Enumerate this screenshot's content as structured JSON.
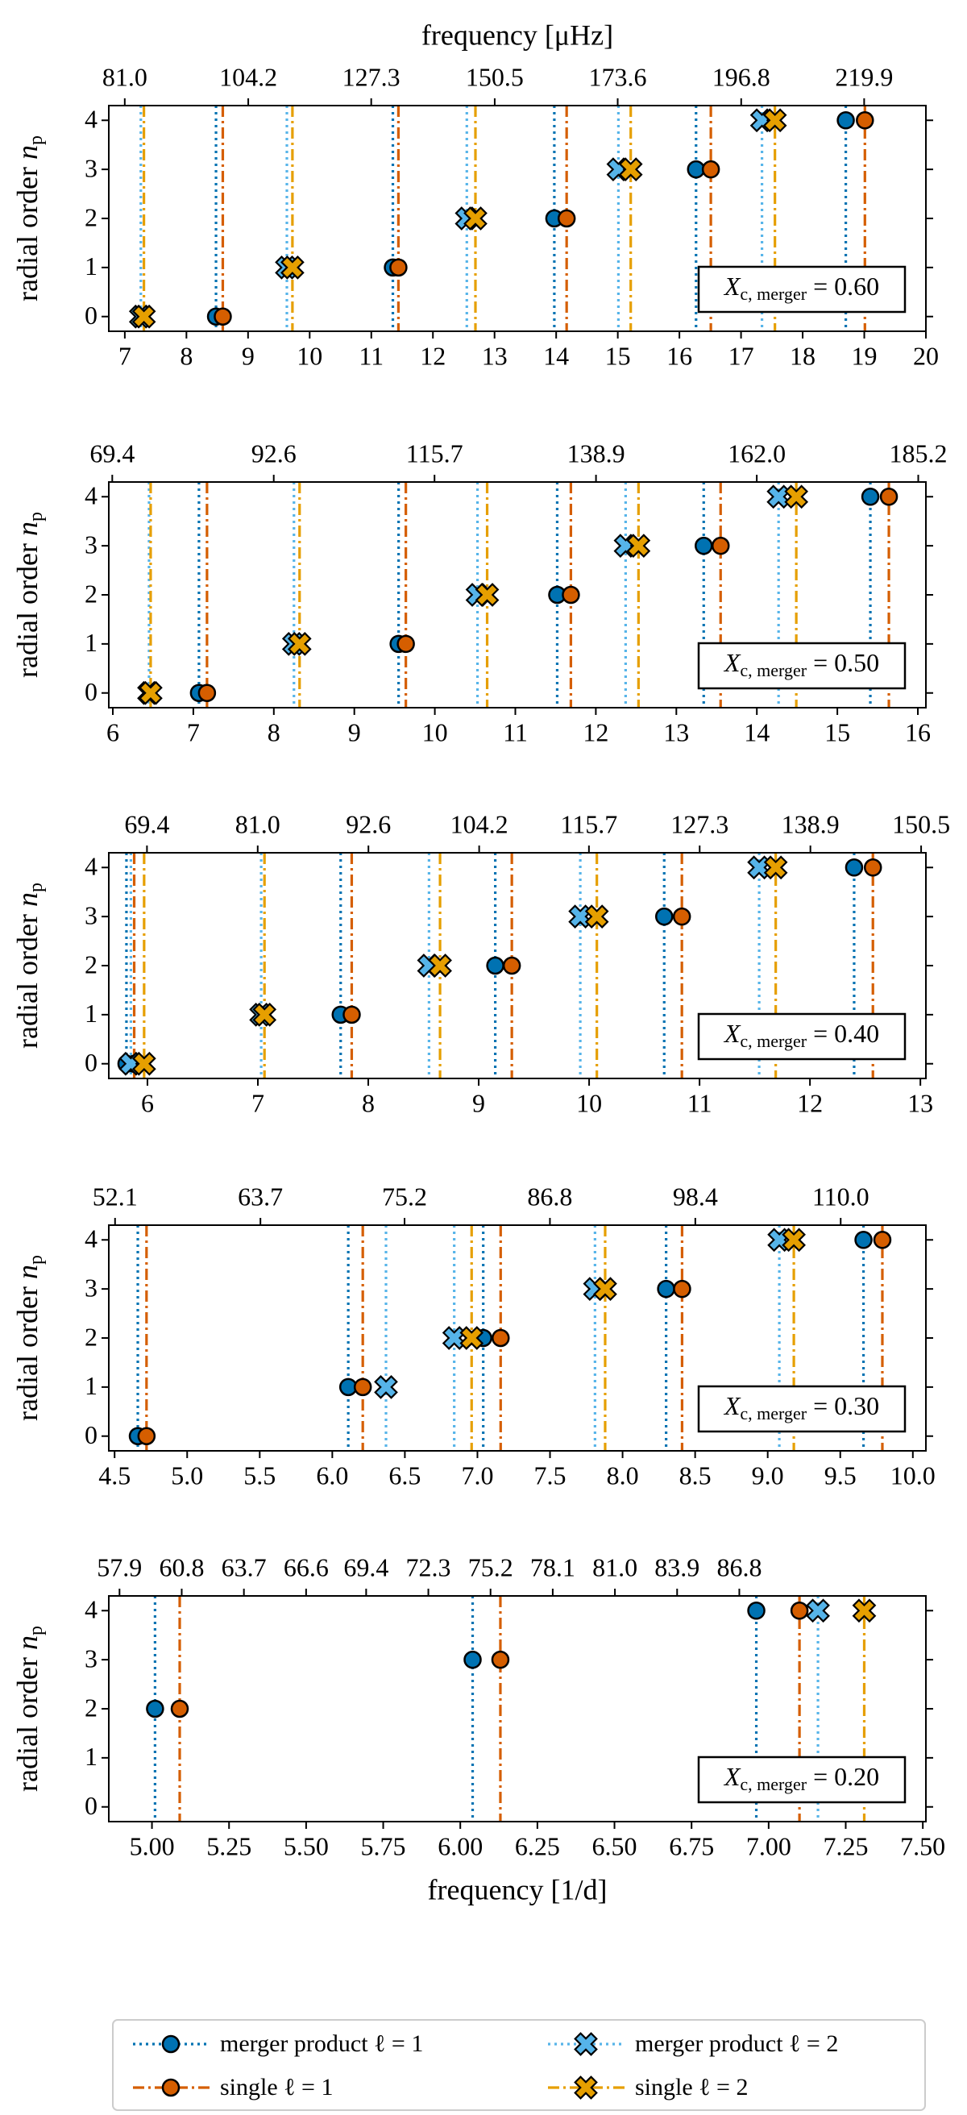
{
  "chart_data": [
    {
      "type": "scatter",
      "x2_label": "frequency [μHz]",
      "y_label": {
        "text": "radial order",
        "symbol": "n",
        "subscript": "p"
      },
      "xlim": [
        6.74,
        20.0
      ],
      "xticks": [
        7,
        8,
        9,
        10,
        11,
        12,
        13,
        14,
        15,
        16,
        17,
        18,
        19,
        20
      ],
      "x2lim": [
        78.0,
        231.5
      ],
      "x2ticks": [
        {
          "value": 81.0,
          "label": "81.0"
        },
        104.2,
        127.3,
        150.5,
        173.6,
        196.8,
        219.9
      ],
      "ylim": [
        -0.3,
        4.3
      ],
      "yticks": [
        0,
        1,
        2,
        3,
        4
      ],
      "annotation": {
        "symbol": "X",
        "subscript": "c, merger",
        "text": "= 0.60"
      },
      "series": [
        {
          "x": [
            8.48,
            11.35,
            13.97,
            16.27,
            18.7
          ],
          "values": [
            0,
            1,
            2,
            3,
            4
          ]
        },
        {
          "x": [
            8.59,
            11.44,
            14.17,
            16.51,
            19.01
          ],
          "values": [
            0,
            1,
            2,
            3,
            4
          ]
        },
        {
          "x": [
            7.26,
            9.63,
            12.55,
            15.01,
            17.34
          ],
          "values": [
            0,
            1,
            2,
            3,
            4
          ]
        },
        {
          "x": [
            7.31,
            9.72,
            12.69,
            15.21,
            17.55
          ],
          "values": [
            0,
            1,
            2,
            3,
            4
          ]
        }
      ]
    },
    {
      "type": "scatter",
      "y_label": {
        "text": "radial order",
        "symbol": "n",
        "subscript": "p"
      },
      "xlim": [
        5.95,
        16.1
      ],
      "xticks": [
        6,
        7,
        8,
        9,
        10,
        11,
        12,
        13,
        14,
        15,
        16
      ],
      "x2lim": [
        68.9,
        186.3
      ],
      "x2ticks": [
        69.4,
        92.6,
        115.7,
        138.9,
        {
          "value": 162.0,
          "label": "162.0"
        },
        185.2
      ],
      "ylim": [
        -0.3,
        4.3
      ],
      "yticks": [
        0,
        1,
        2,
        3,
        4
      ],
      "annotation": {
        "symbol": "X",
        "subscript": "c, merger",
        "text": "= 0.50"
      },
      "series": [
        {
          "x": [
            7.07,
            9.55,
            11.52,
            13.34,
            15.41
          ],
          "values": [
            0,
            1,
            2,
            3,
            4
          ]
        },
        {
          "x": [
            7.17,
            9.64,
            11.69,
            13.55,
            15.64
          ],
          "values": [
            0,
            1,
            2,
            3,
            4
          ]
        },
        {
          "x": [
            6.45,
            8.25,
            10.53,
            12.37,
            14.27
          ],
          "values": [
            0,
            1,
            2,
            3,
            4
          ]
        },
        {
          "x": [
            6.47,
            8.32,
            10.65,
            12.53,
            14.49
          ],
          "values": [
            0,
            1,
            2,
            3,
            4
          ]
        }
      ]
    },
    {
      "type": "scatter",
      "y_label": {
        "text": "radial order",
        "symbol": "n",
        "subscript": "p"
      },
      "xlim": [
        5.65,
        13.05
      ],
      "xticks": [
        6,
        7,
        8,
        9,
        10,
        11,
        12,
        13
      ],
      "x2lim": [
        65.4,
        151.0
      ],
      "x2ticks": [
        69.4,
        {
          "value": 81.0,
          "label": "81.0"
        },
        92.6,
        104.2,
        115.7,
        127.3,
        138.9,
        150.5
      ],
      "ylim": [
        -0.3,
        4.3
      ],
      "yticks": [
        0,
        1,
        2,
        3,
        4
      ],
      "annotation": {
        "symbol": "X",
        "subscript": "c, merger",
        "text": "= 0.40"
      },
      "series": [
        {
          "x": [
            5.81,
            7.75,
            9.15,
            10.68,
            12.4
          ],
          "values": [
            0,
            1,
            2,
            3,
            4
          ]
        },
        {
          "x": [
            5.88,
            7.85,
            9.3,
            10.84,
            12.57
          ],
          "values": [
            0,
            1,
            2,
            3,
            4
          ]
        },
        {
          "x": [
            5.85,
            7.03,
            8.55,
            9.92,
            11.54
          ],
          "values": [
            0,
            1,
            2,
            3,
            4
          ]
        },
        {
          "x": [
            5.97,
            7.06,
            8.65,
            10.07,
            11.69
          ],
          "values": [
            0,
            1,
            2,
            3,
            4
          ]
        }
      ]
    },
    {
      "type": "scatter",
      "y_label": {
        "text": "radial order",
        "symbol": "n",
        "subscript": "p"
      },
      "xlim": [
        4.46,
        10.09
      ],
      "xticks": [
        4.5,
        {
          "value": 5,
          "label": "5.0"
        },
        5.5,
        {
          "value": 6,
          "label": "6.0"
        },
        6.5,
        {
          "value": 7,
          "label": "7.0"
        },
        7.5,
        {
          "value": 8,
          "label": "8.0"
        },
        8.5,
        {
          "value": 9,
          "label": "9.0"
        },
        9.5,
        {
          "value": 10,
          "label": "10.0"
        }
      ],
      "x2lim": [
        51.6,
        116.8
      ],
      "x2ticks": [
        52.1,
        63.7,
        75.2,
        86.8,
        98.4,
        {
          "value": 110.0,
          "label": "110.0"
        }
      ],
      "ylim": [
        -0.3,
        4.3
      ],
      "yticks": [
        0,
        1,
        2,
        3,
        4
      ],
      "annotation": {
        "symbol": "X",
        "subscript": "c, merger",
        "text": "= 0.30"
      },
      "series": [
        {
          "x": [
            4.66,
            6.11,
            7.04,
            8.3,
            9.66
          ],
          "values": [
            0,
            1,
            2,
            3,
            4
          ]
        },
        {
          "x": [
            4.72,
            6.21,
            7.16,
            8.41,
            9.79
          ],
          "values": [
            0,
            1,
            2,
            3,
            4
          ]
        },
        {
          "x": [
            6.37,
            6.84,
            7.81,
            9.08
          ],
          "values": [
            1,
            2,
            3,
            4
          ]
        },
        {
          "x": [
            6.96,
            7.88,
            9.18
          ],
          "values": [
            2,
            3,
            4
          ]
        }
      ]
    },
    {
      "type": "scatter",
      "x_label": "frequency [1/d]",
      "y_label": {
        "text": "radial order",
        "symbol": "n",
        "subscript": "p"
      },
      "xlim": [
        4.86,
        7.51
      ],
      "xticks": [
        {
          "value": 5,
          "label": "5.00"
        },
        5.25,
        {
          "value": 5.5,
          "label": "5.50"
        },
        5.75,
        {
          "value": 6,
          "label": "6.00"
        },
        6.25,
        {
          "value": 6.5,
          "label": "6.50"
        },
        6.75,
        {
          "value": 7,
          "label": "7.00"
        },
        7.25,
        {
          "value": 7.5,
          "label": "7.50"
        }
      ],
      "x2lim": [
        57.4,
        95.5
      ],
      "x2ticks": [
        57.9,
        60.8,
        63.7,
        66.6,
        69.4,
        72.3,
        75.2,
        78.1,
        {
          "value": 81.0,
          "label": "81.0"
        },
        83.9,
        86.8
      ],
      "ylim": [
        -0.3,
        4.3
      ],
      "yticks": [
        0,
        1,
        2,
        3,
        4
      ],
      "annotation": {
        "symbol": "X",
        "subscript": "c, merger",
        "text": "= 0.20"
      },
      "series": [
        {
          "x": [
            5.01,
            6.04,
            6.96
          ],
          "values": [
            2,
            3,
            4
          ]
        },
        {
          "x": [
            5.09,
            6.13,
            7.1
          ],
          "values": [
            2,
            3,
            4
          ]
        },
        {
          "x": [
            7.16
          ],
          "values": [
            4
          ]
        },
        {
          "x": [
            7.31
          ],
          "values": [
            4
          ]
        }
      ]
    }
  ],
  "legend": {
    "entries": [
      {
        "name": "merger product ℓ = 1",
        "color": "#0072b2",
        "marker": "circle",
        "linestyle": "dotted"
      },
      {
        "name": "single ℓ = 1",
        "color": "#d55e00",
        "marker": "circle",
        "linestyle": "dashdot"
      },
      {
        "name": "merger product ℓ = 2",
        "color": "#56b4e9",
        "marker": "cross",
        "linestyle": "dotted"
      },
      {
        "name": "single ℓ = 2",
        "color": "#e69f00",
        "marker": "cross",
        "linestyle": "dashdot"
      }
    ]
  }
}
